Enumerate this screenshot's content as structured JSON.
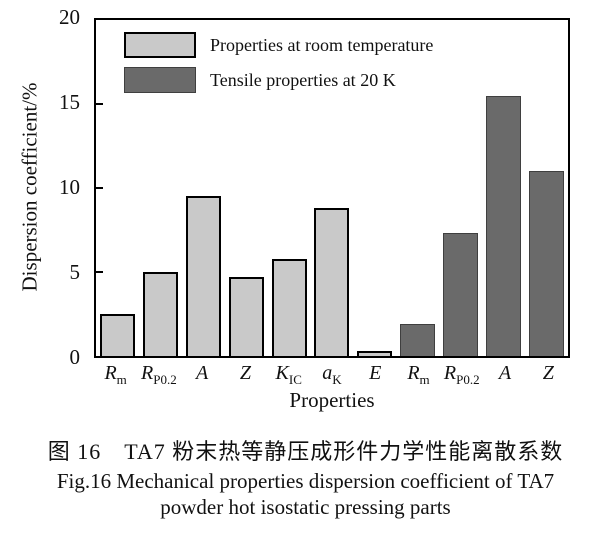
{
  "figure": {
    "caption_zh": "图 16　TA7 粉末热等静压成形件力学性能离散系数",
    "caption_en_line1": "Fig.16 Mechanical properties dispersion coefficient of TA7",
    "caption_en_line2": "powder hot isostatic pressing parts"
  },
  "chart_data": {
    "type": "bar",
    "title": "",
    "xlabel": "Properties",
    "ylabel": "Dispersion coefficient/%",
    "ylim": [
      0,
      20
    ],
    "yticks": [
      0,
      5,
      10,
      15,
      20
    ],
    "grid": false,
    "legend_position": "top-left-inside",
    "series": [
      {
        "name": "Properties at room temperature",
        "color": "#c9c9c9",
        "border_color": "#000000"
      },
      {
        "name": "Tensile properties at 20 K",
        "color": "#6a6a6a",
        "border_color": "#3f3f3f"
      }
    ],
    "bars": [
      {
        "category": "Rm",
        "label_main": "R",
        "label_sub": "m",
        "series": 0,
        "value": 2.5
      },
      {
        "category": "RP0.2",
        "label_main": "R",
        "label_sub": "P0.2",
        "series": 0,
        "value": 5.0
      },
      {
        "category": "A",
        "label_main": "A",
        "label_sub": "",
        "series": 0,
        "value": 9.5
      },
      {
        "category": "Z",
        "label_main": "Z",
        "label_sub": "",
        "series": 0,
        "value": 4.7
      },
      {
        "category": "KIC",
        "label_main": "K",
        "label_sub": "IC",
        "series": 0,
        "value": 5.8
      },
      {
        "category": "aK",
        "label_main": "a",
        "label_sub": "K",
        "series": 0,
        "value": 8.8
      },
      {
        "category": "E",
        "label_main": "E",
        "label_sub": "",
        "series": 0,
        "value": 0.3
      },
      {
        "category": "Rm",
        "label_main": "R",
        "label_sub": "m",
        "series": 1,
        "value": 1.9
      },
      {
        "category": "RP0.2",
        "label_main": "R",
        "label_sub": "P0.2",
        "series": 1,
        "value": 7.3
      },
      {
        "category": "A",
        "label_main": "A",
        "label_sub": "",
        "series": 1,
        "value": 15.5
      },
      {
        "category": "Z",
        "label_main": "Z",
        "label_sub": "",
        "series": 1,
        "value": 11.0
      }
    ]
  }
}
